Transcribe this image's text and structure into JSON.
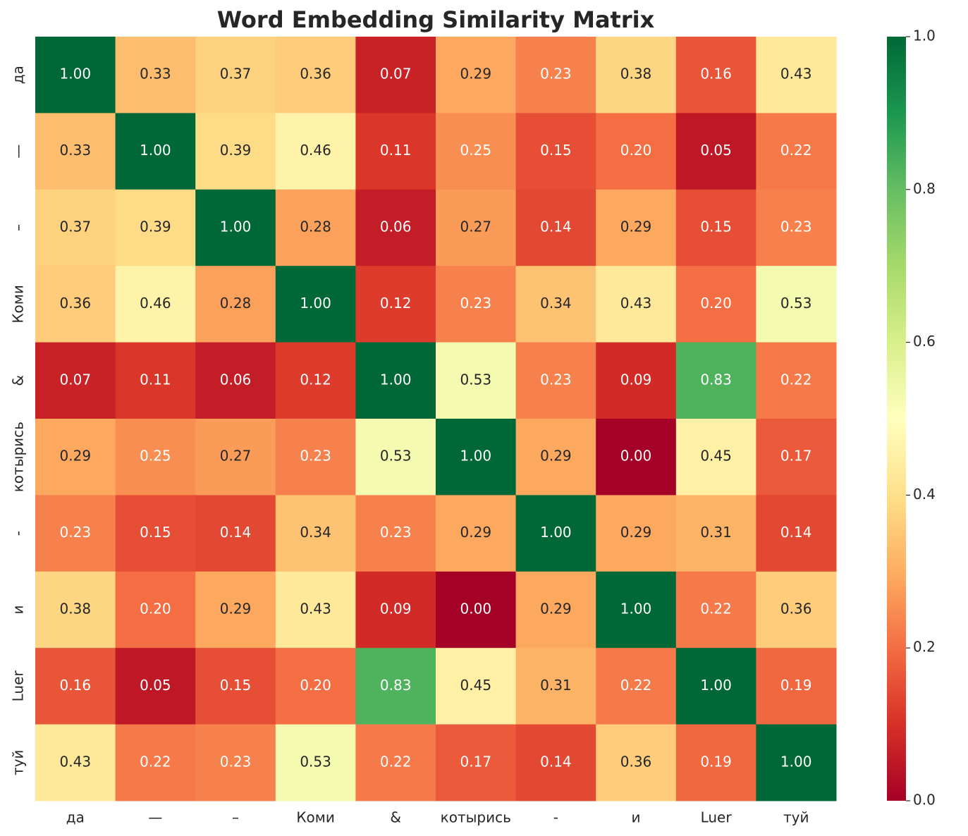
{
  "chart_data": {
    "type": "heatmap",
    "title": "Word Embedding Similarity Matrix",
    "x_categories": [
      "да",
      "—",
      "–",
      "Коми",
      "&",
      "котырись",
      "-",
      "и",
      "Luer",
      "туй"
    ],
    "y_categories": [
      "да",
      "—",
      "–",
      "Коми",
      "&",
      "котырись",
      "-",
      "и",
      "Luer",
      "туй"
    ],
    "values": [
      [
        1,
        0.33,
        0.37,
        0.36,
        0.07,
        0.29,
        0.23,
        0.38,
        0.16,
        0.43
      ],
      [
        0.33,
        1,
        0.39,
        0.46,
        0.11,
        0.25,
        0.15,
        0.2,
        0.05,
        0.22
      ],
      [
        0.37,
        0.39,
        1,
        0.28,
        0.06,
        0.27,
        0.14,
        0.29,
        0.15,
        0.23
      ],
      [
        0.36,
        0.46,
        0.28,
        1,
        0.12,
        0.23,
        0.34,
        0.43,
        0.2,
        0.53
      ],
      [
        0.07,
        0.11,
        0.06,
        0.12,
        1,
        0.53,
        0.23,
        0.09,
        0.83,
        0.22
      ],
      [
        0.29,
        0.25,
        0.27,
        0.23,
        0.53,
        1,
        0.29,
        0,
        0.45,
        0.17
      ],
      [
        0.23,
        0.15,
        0.14,
        0.34,
        0.23,
        0.29,
        1,
        0.29,
        0.31,
        0.14
      ],
      [
        0.38,
        0.2,
        0.29,
        0.43,
        0.09,
        0,
        0.29,
        1,
        0.22,
        0.36
      ],
      [
        0.16,
        0.05,
        0.15,
        0.2,
        0.83,
        0.45,
        0.31,
        0.22,
        1,
        0.19
      ],
      [
        0.43,
        0.22,
        0.23,
        0.53,
        0.22,
        0.17,
        0.14,
        0.36,
        0.19,
        1
      ]
    ],
    "value_labels": [
      [
        "1.00",
        "0.33",
        "0.37",
        "0.36",
        "0.07",
        "0.29",
        "0.23",
        "0.38",
        "0.16",
        "0.43"
      ],
      [
        "0.33",
        "1.00",
        "0.39",
        "0.46",
        "0.11",
        "0.25",
        "0.15",
        "0.20",
        "0.05",
        "0.22"
      ],
      [
        "0.37",
        "0.39",
        "1.00",
        "0.28",
        "0.06",
        "0.27",
        "0.14",
        "0.29",
        "0.15",
        "0.23"
      ],
      [
        "0.36",
        "0.46",
        "0.28",
        "1.00",
        "0.12",
        "0.23",
        "0.34",
        "0.43",
        "0.20",
        "0.53"
      ],
      [
        "0.07",
        "0.11",
        "0.06",
        "0.12",
        "1.00",
        "0.53",
        "0.23",
        "0.09",
        "0.83",
        "0.22"
      ],
      [
        "0.29",
        "0.25",
        "0.27",
        "0.23",
        "0.53",
        "1.00",
        "0.29",
        "0.00",
        "0.45",
        "0.17"
      ],
      [
        "0.23",
        "0.15",
        "0.14",
        "0.34",
        "0.23",
        "0.29",
        "1.00",
        "0.29",
        "0.31",
        "0.14"
      ],
      [
        "0.38",
        "0.20",
        "0.29",
        "0.43",
        "0.09",
        "0.00",
        "0.29",
        "1.00",
        "0.22",
        "0.36"
      ],
      [
        "0.16",
        "0.05",
        "0.15",
        "0.20",
        "0.83",
        "0.45",
        "0.31",
        "0.22",
        "1.00",
        "0.19"
      ],
      [
        "0.43",
        "0.22",
        "0.23",
        "0.53",
        "0.22",
        "0.17",
        "0.14",
        "0.36",
        "0.19",
        "1.00"
      ]
    ],
    "colorscale": [
      "#a50026",
      "#d73027",
      "#f46d43",
      "#fdae61",
      "#fee08b",
      "#ffffbf",
      "#d9ef8b",
      "#a6d96a",
      "#66bd63",
      "#1a9850",
      "#006837"
    ],
    "zlim": [
      0,
      1
    ],
    "zticks": [
      {
        "value": 0,
        "label": "0.0"
      },
      {
        "value": 0.2,
        "label": "0.2"
      },
      {
        "value": 0.4,
        "label": "0.4"
      },
      {
        "value": 0.6,
        "label": "0.6"
      },
      {
        "value": 0.8,
        "label": "0.8"
      },
      {
        "value": 1,
        "label": "1.0"
      }
    ]
  }
}
